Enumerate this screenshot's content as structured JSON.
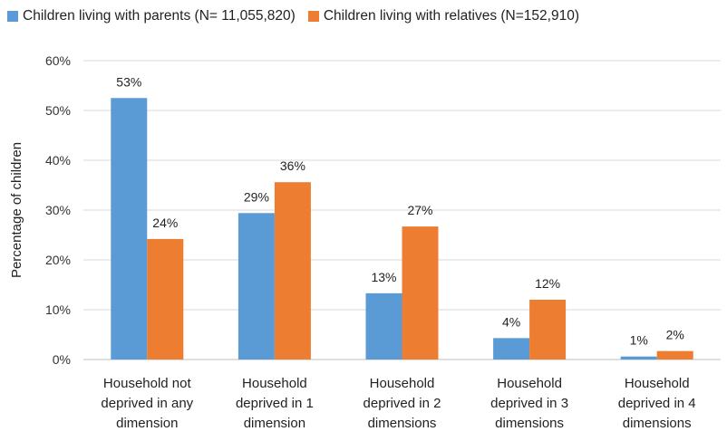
{
  "chart_data": {
    "type": "bar",
    "title": "",
    "xlabel": "",
    "ylabel": "Percentage of children",
    "ylim": [
      0,
      60
    ],
    "yticks": [
      "0%",
      "10%",
      "20%",
      "30%",
      "40%",
      "50%",
      "60%"
    ],
    "grid": true,
    "legend_position": "top",
    "categories": [
      [
        "Household not",
        "deprived in any",
        "dimension"
      ],
      [
        "Household",
        "deprived in 1",
        "dimension"
      ],
      [
        "Household",
        "deprived in 2",
        "dimensions"
      ],
      [
        "Household",
        "deprived in 3",
        "dimensions"
      ],
      [
        "Household",
        "deprived in 4",
        "dimensions"
      ]
    ],
    "series": [
      {
        "name": "Children living with parents (N= 11,055,820)",
        "color": "#5b9bd5",
        "values": [
          52.5,
          29.4,
          13.3,
          4.3,
          0.6
        ],
        "labels": [
          "53%",
          "29%",
          "13%",
          "4%",
          "1%"
        ]
      },
      {
        "name": "Children living with relatives (N=152,910)",
        "color": "#ed7d31",
        "values": [
          24.2,
          35.6,
          26.7,
          12.0,
          1.7
        ],
        "labels": [
          "24%",
          "36%",
          "27%",
          "12%",
          "2%"
        ]
      }
    ]
  }
}
